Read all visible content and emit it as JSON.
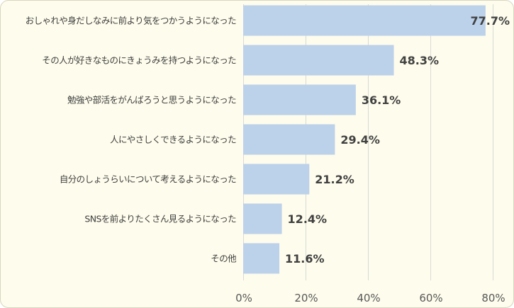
{
  "chart_data": {
    "type": "bar",
    "orientation": "horizontal",
    "categories": [
      "おしゃれや身だしなみに前より気をつかうようになった",
      "その人が好きなものにきょうみを持つようになった",
      "勉強や部活をがんばろうと思うようになった",
      "人にやさしくできるようになった",
      "自分のしょうらいについて考えるようになった",
      "SNSを前よりたくさん見るようになった",
      "その他"
    ],
    "values": [
      77.7,
      48.3,
      36.1,
      29.4,
      21.2,
      12.4,
      11.6
    ],
    "value_labels": [
      "77.7%",
      "48.3%",
      "36.1%",
      "29.4%",
      "21.2%",
      "12.4%",
      "11.6%"
    ],
    "xlim": [
      0,
      85
    ],
    "xticks": [
      0,
      20,
      40,
      60,
      80
    ],
    "xtick_labels": [
      "0%",
      "20%",
      "40%",
      "60%",
      "80%"
    ],
    "grid": true,
    "bar_color": "#bcd1ea",
    "background_color": "#fefcec"
  }
}
